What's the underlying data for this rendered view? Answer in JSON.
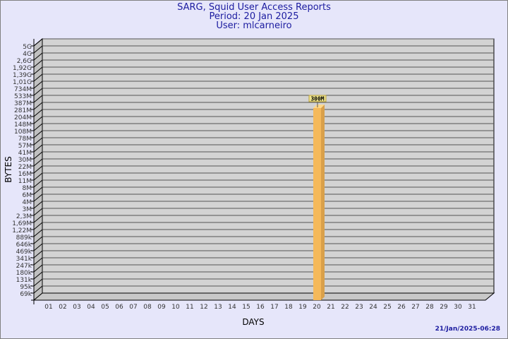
{
  "header": {
    "title": "SARG, Squid User Access Reports",
    "period": "Period: 20 Jan 2025",
    "user": "User: mlcarneiro"
  },
  "footer": {
    "timestamp": "21/Jan/2025-06:28"
  },
  "colors": {
    "background": "#e6e6fa",
    "plot": "#d3d3d3",
    "bar": "#f5b95a",
    "title": "#1c1ca0"
  },
  "chart_data": {
    "type": "bar",
    "xlabel": "DAYS",
    "ylabel": "BYTES",
    "y_scale": "log",
    "y_ticks": [
      "5G",
      "4G",
      "2,6G",
      "1,92G",
      "1,39G",
      "1,01G",
      "734M",
      "533M",
      "387M",
      "281M",
      "204M",
      "148M",
      "108M",
      "78M",
      "57M",
      "41M",
      "30M",
      "22M",
      "16M",
      "11M",
      "8M",
      "6M",
      "4M",
      "3M",
      "2,3M",
      "1,69M",
      "1,22M",
      "889k",
      "646k",
      "469k",
      "341k",
      "247k",
      "180k",
      "131k",
      "95k",
      "69k"
    ],
    "categories": [
      "01",
      "02",
      "03",
      "04",
      "05",
      "06",
      "07",
      "08",
      "09",
      "10",
      "11",
      "12",
      "13",
      "14",
      "15",
      "16",
      "17",
      "18",
      "19",
      "20",
      "21",
      "22",
      "23",
      "24",
      "25",
      "26",
      "27",
      "28",
      "29",
      "30",
      "31"
    ],
    "bars": [
      {
        "day": "20",
        "value": 300000000,
        "label": "300M"
      }
    ],
    "grid": true
  }
}
